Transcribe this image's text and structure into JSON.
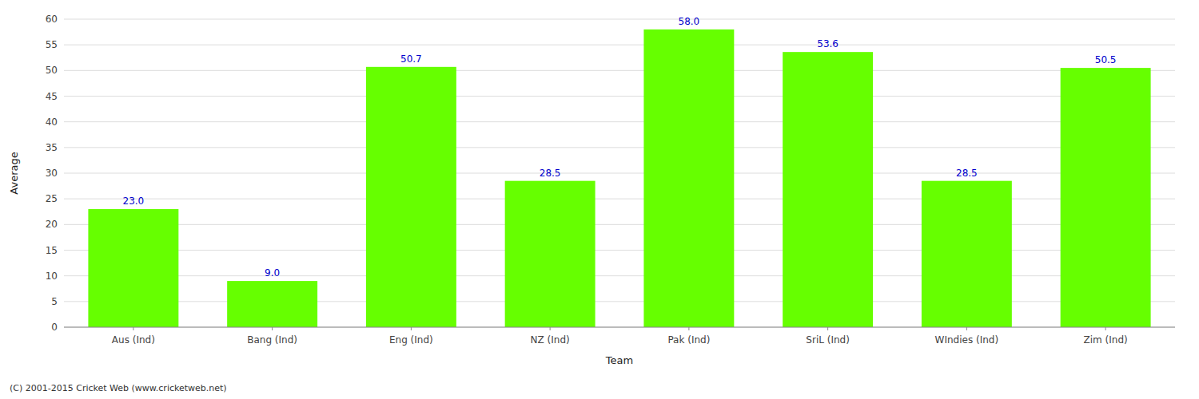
{
  "chart_data": {
    "type": "bar",
    "categories": [
      "Aus (Ind)",
      "Bang (Ind)",
      "Eng (Ind)",
      "NZ (Ind)",
      "Pak (Ind)",
      "SriL (Ind)",
      "WIndies (Ind)",
      "Zim (Ind)"
    ],
    "values": [
      23.0,
      9.0,
      50.7,
      28.5,
      58.0,
      53.6,
      28.5,
      50.5
    ],
    "value_labels": [
      "23.0",
      "9.0",
      "50.7",
      "28.5",
      "58.0",
      "53.6",
      "28.5",
      "50.5"
    ],
    "data_labels": true,
    "color": "#66ff00",
    "xlabel": "Team",
    "ylabel": "Average",
    "ylim": [
      0,
      60
    ],
    "yticks": [
      0,
      5,
      10,
      15,
      20,
      25,
      30,
      35,
      40,
      45,
      50,
      55,
      60
    ],
    "grid": true,
    "annotations": [
      "(C) 2001-2015 Cricket Web (www.cricketweb.net)"
    ]
  }
}
